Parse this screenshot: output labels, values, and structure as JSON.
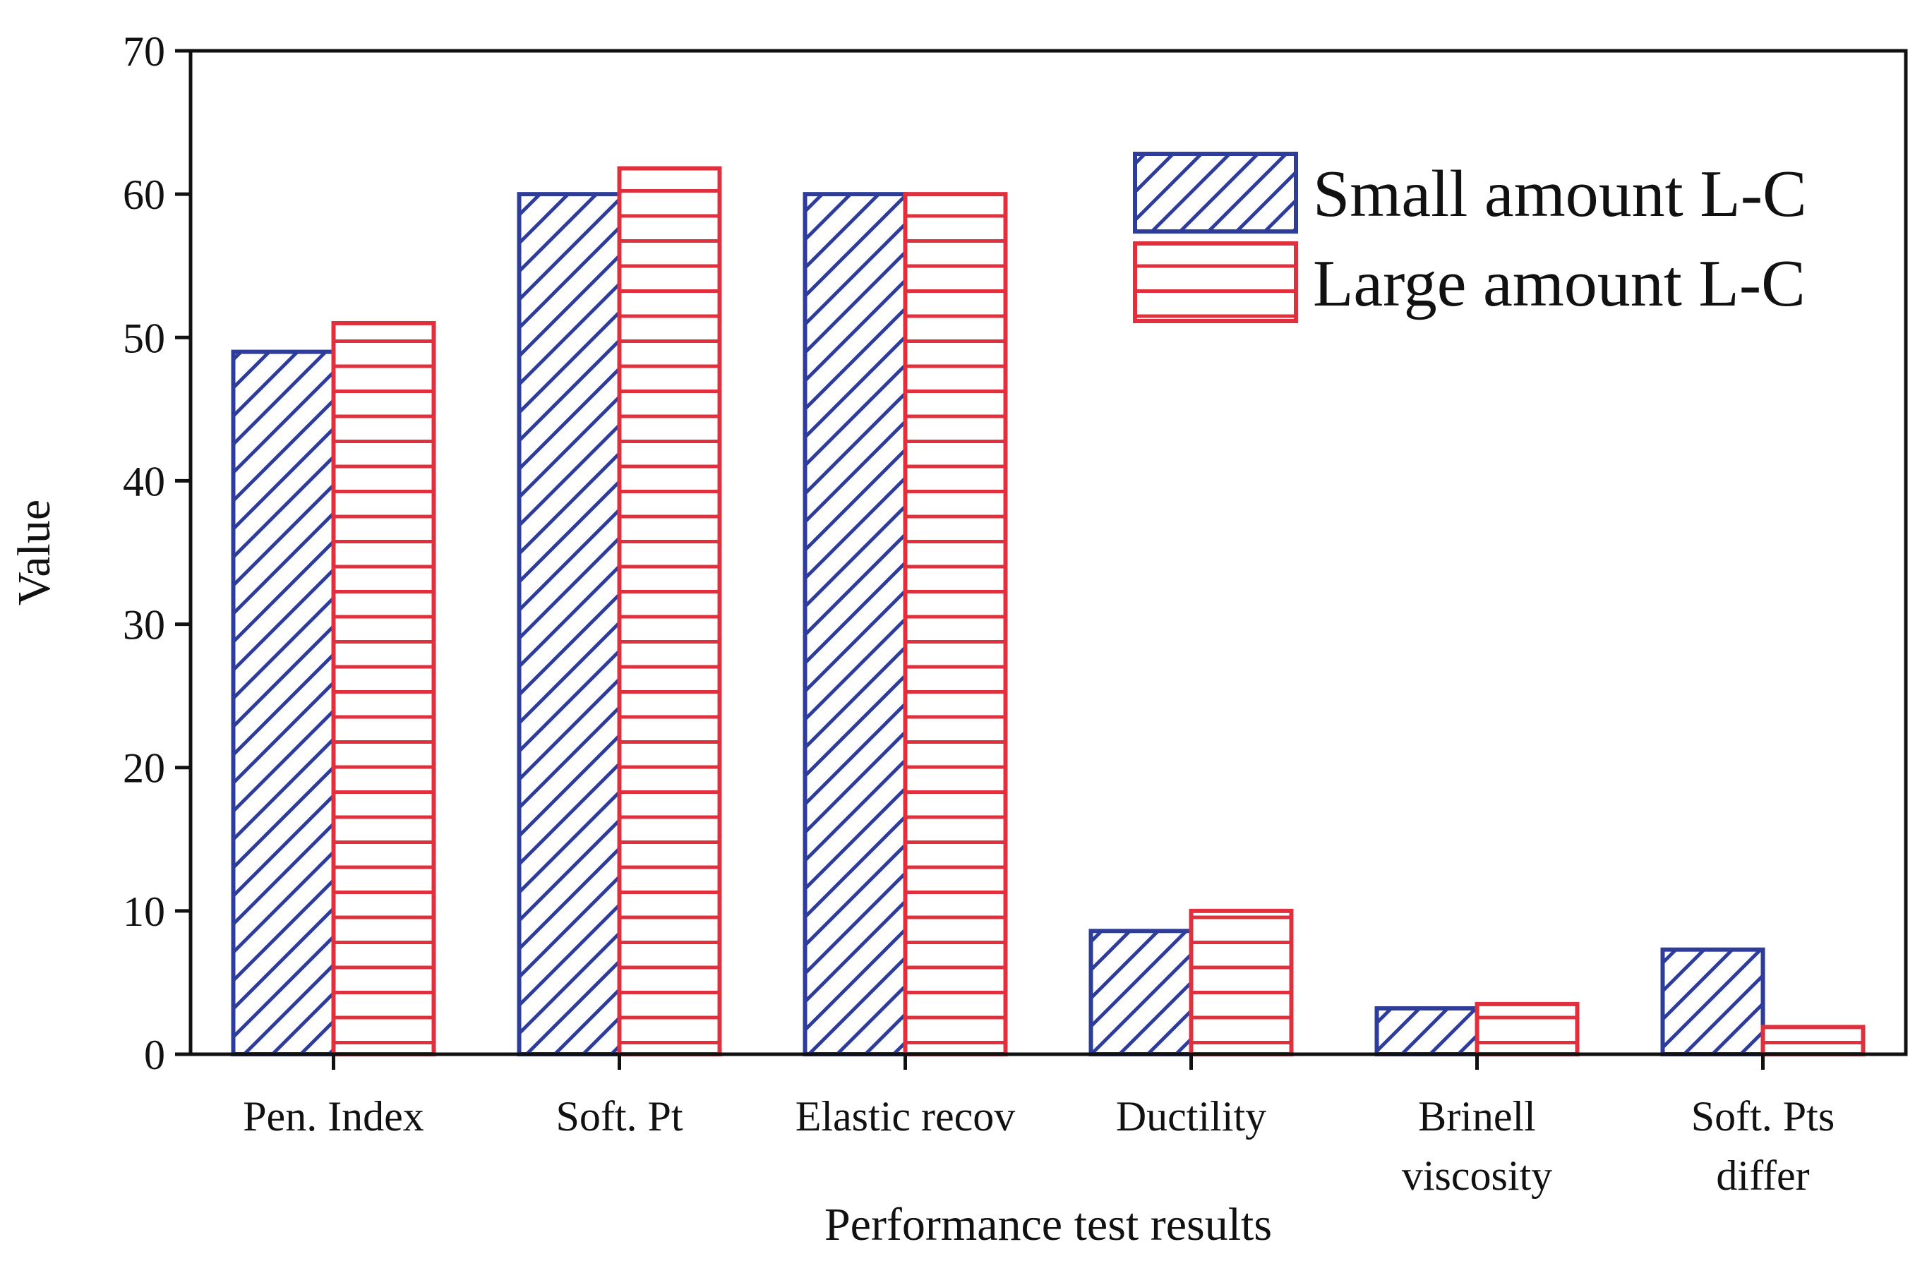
{
  "chart_data": {
    "type": "bar",
    "title": "",
    "xlabel": "Performance test results",
    "ylabel": "Value",
    "ylim": [
      0,
      70
    ],
    "yticks": [
      0,
      10,
      20,
      30,
      40,
      50,
      60,
      70
    ],
    "categories": [
      [
        "Pen. Index"
      ],
      [
        "Soft. Pt"
      ],
      [
        "Elastic recov"
      ],
      [
        "Ductility"
      ],
      [
        "Brinell",
        "viscosity"
      ],
      [
        "Soft. Pts",
        "differ"
      ]
    ],
    "series": [
      {
        "name": "Small amount L-C",
        "color": "#2E3D9A",
        "pattern": "diagonal-hatch",
        "values": [
          49,
          60,
          60,
          8.6,
          3.2,
          7.3
        ]
      },
      {
        "name": "Large amount L-C",
        "color": "#E0303E",
        "pattern": "horizontal-lines",
        "values": [
          51,
          61.8,
          60,
          10,
          3.5,
          1.9
        ]
      }
    ],
    "legend_position": "top-right",
    "grid": false
  }
}
